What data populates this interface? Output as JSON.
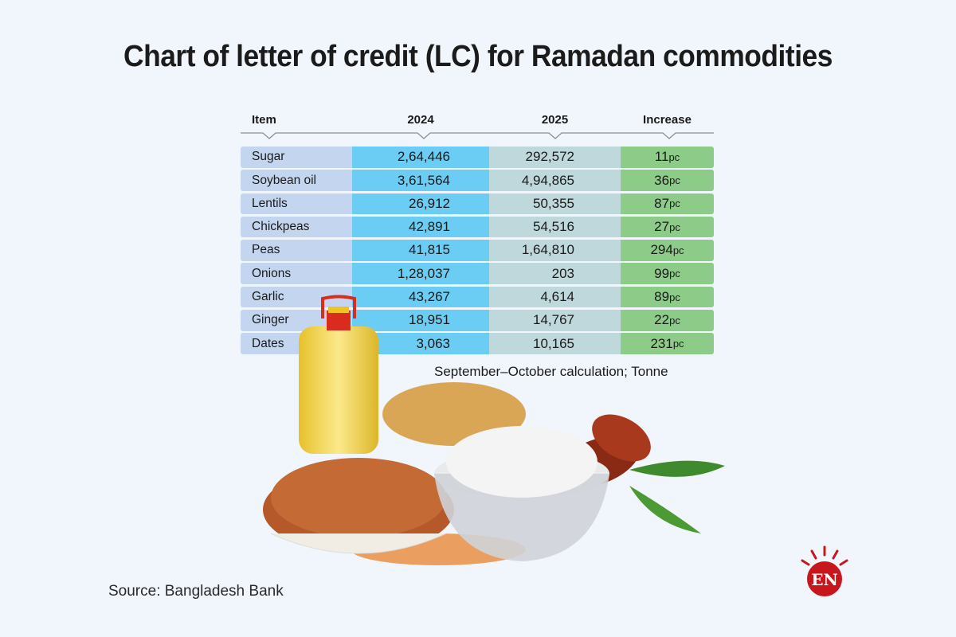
{
  "title": "Chart of letter of credit (LC) for Ramadan commodities",
  "table": {
    "headers": [
      "Item",
      "2024",
      "2025",
      "Increase"
    ],
    "rows": [
      {
        "item": "Sugar",
        "y2024": "2,64,446",
        "y2025": "292,572",
        "increase": "11",
        "unit": "pc"
      },
      {
        "item": "Soybean oil",
        "y2024": "3,61,564",
        "y2025": "4,94,865",
        "increase": "36",
        "unit": "pc"
      },
      {
        "item": "Lentils",
        "y2024": "26,912",
        "y2025": "50,355",
        "increase": "87",
        "unit": "pc"
      },
      {
        "item": "Chickpeas",
        "y2024": "42,891",
        "y2025": "54,516",
        "increase": "27",
        "unit": "pc"
      },
      {
        "item": "Peas",
        "y2024": "41,815",
        "y2025": "1,64,810",
        "increase": "294",
        "unit": "pc"
      },
      {
        "item": "Onions",
        "y2024": "1,28,037",
        "y2025": "203",
        "increase": "99",
        "unit": "pc"
      },
      {
        "item": "Garlic",
        "y2024": "43,267",
        "y2025": "4,614",
        "increase": "89",
        "unit": "pc"
      },
      {
        "item": "Ginger",
        "y2024": "18,951",
        "y2025": "14,767",
        "increase": "22",
        "unit": "pc"
      },
      {
        "item": "Dates",
        "y2024": "3,063",
        "y2025": "10,165",
        "increase": "231",
        "unit": "pc"
      }
    ]
  },
  "note": "September–October calculation; Tonne",
  "source": "Source: Bangladesh Bank",
  "logo": {
    "text": "EN",
    "color": "#c8161d"
  },
  "colors": {
    "item_col": "#c4d6ef",
    "col_2024": "#6ccdf4",
    "col_2025": "#bfd8dc",
    "increase_col": "#8ccb88",
    "background": "#f1f6fc"
  },
  "chart_data": {
    "type": "table",
    "title": "Chart of letter of credit (LC) for Ramadan commodities",
    "columns": [
      "Item",
      "2024",
      "2025",
      "Increase"
    ],
    "categories": [
      "Sugar",
      "Soybean oil",
      "Lentils",
      "Chickpeas",
      "Peas",
      "Onions",
      "Garlic",
      "Ginger",
      "Dates"
    ],
    "series": [
      {
        "name": "2024",
        "values": [
          264446,
          361564,
          26912,
          42891,
          41815,
          128037,
          43267,
          18951,
          3063
        ]
      },
      {
        "name": "2025",
        "values": [
          292572,
          494865,
          50355,
          54516,
          164810,
          203,
          4614,
          14767,
          10165
        ]
      },
      {
        "name": "Increase (pc)",
        "values": [
          11,
          36,
          87,
          27,
          294,
          99,
          89,
          22,
          231
        ]
      }
    ],
    "unit": "Tonne",
    "note": "September–October calculation; Tonne",
    "source": "Bangladesh Bank"
  }
}
